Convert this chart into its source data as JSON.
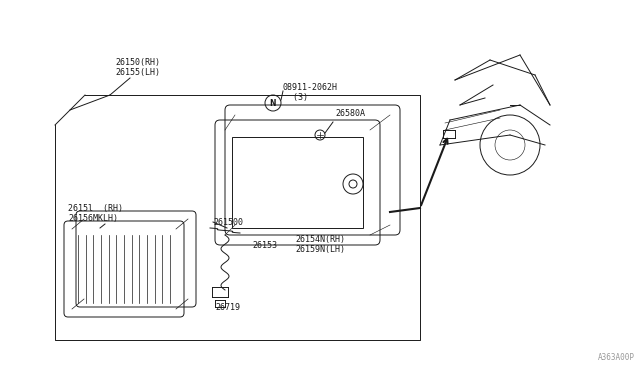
{
  "bg_color": "#ffffff",
  "col": "#1a1a1a",
  "part_number_bottom": "A363A00P",
  "parts": {
    "main_label": "26150(RH)\n26155(LH)",
    "lens_label": "2615l  (RH)\n26156MKLH)",
    "nut_label": "08911-2062H\n  (3)",
    "screw_label": "26580A",
    "gasket_label": "261500",
    "wiring_label": "26719",
    "part_26153": "26153",
    "part_26154": "26154N(RH)\n26159N(LH)"
  }
}
